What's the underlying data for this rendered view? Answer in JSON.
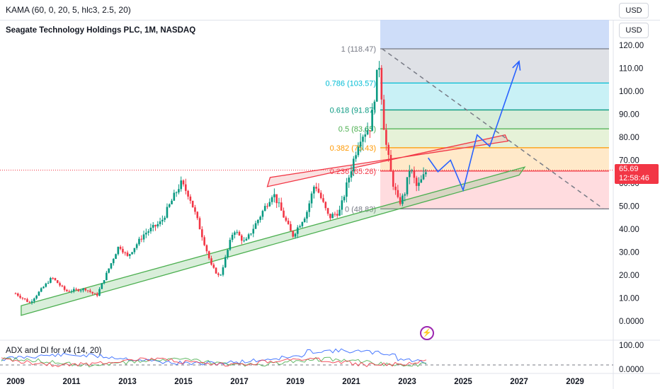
{
  "header": {
    "indicator_label": "KAMA (60, 0, 20, 5, hlc3, 2.5, 20)",
    "currency_top": "USD",
    "currency_main": "USD"
  },
  "chart_title": "Seagate Technology Holdings PLC, 1M, NASDAQ",
  "sub_indicator": {
    "label": "ADX and DI for v4 (14, 20)",
    "axis_labels": [
      "100.00",
      "0.0000"
    ]
  },
  "price_tag": {
    "price": "65.69",
    "countdown": "12:58:46"
  },
  "event_icon": "lightning-icon",
  "colors": {
    "up": "#089981",
    "down": "#f23645",
    "blue": "#2962ff",
    "channel_green": "#4caf50",
    "channel_red": "#f23645"
  },
  "chart_data": {
    "type": "candlestick",
    "title": "Seagate Technology Holdings PLC, 1M, NASDAQ",
    "x_ticks": [
      "2009",
      "2011",
      "2013",
      "2015",
      "2017",
      "2019",
      "2021",
      "2023",
      "2025",
      "2027",
      "2029"
    ],
    "y_ticks": [
      "120.00",
      "110.00",
      "100.00",
      "90.00",
      "80.00",
      "70.00",
      "60.00",
      "50.00",
      "40.00",
      "30.00",
      "20.00",
      "10.00",
      "0.0000"
    ],
    "ylim": [
      0,
      125
    ],
    "xlim": [
      2008.9,
      2030.1
    ],
    "fibonacci": [
      {
        "label": "1 (118.47)",
        "level": 1,
        "price": 118.47,
        "color": "#787b86"
      },
      {
        "label": "0.786 (103.57)",
        "level": 0.786,
        "price": 103.57,
        "color": "#00bcd4"
      },
      {
        "label": "0.618 (91.87)",
        "level": 0.618,
        "price": 91.87,
        "color": "#089981"
      },
      {
        "label": "0.5 (83.65)",
        "level": 0.5,
        "price": 83.65,
        "color": "#4caf50"
      },
      {
        "label": "0.382 (75.43)",
        "level": 0.382,
        "price": 75.43,
        "color": "#ff9800"
      },
      {
        "label": "0.236 (65.26)",
        "level": 0.236,
        "price": 65.26,
        "color": "#f23645"
      },
      {
        "label": "0 (48.83)",
        "level": 0,
        "price": 48.83,
        "color": "#787b86"
      }
    ],
    "price_path": [
      [
        2009.0,
        12
      ],
      [
        2009.5,
        8
      ],
      [
        2010.3,
        19
      ],
      [
        2010.8,
        13
      ],
      [
        2011.5,
        14
      ],
      [
        2011.9,
        11
      ],
      [
        2012.7,
        33
      ],
      [
        2013.0,
        28
      ],
      [
        2013.6,
        38
      ],
      [
        2014.2,
        43
      ],
      [
        2014.9,
        60
      ],
      [
        2015.2,
        55
      ],
      [
        2015.6,
        40
      ],
      [
        2016.0,
        24
      ],
      [
        2016.3,
        19
      ],
      [
        2016.8,
        40
      ],
      [
        2017.2,
        34
      ],
      [
        2017.8,
        47
      ],
      [
        2018.2,
        56
      ],
      [
        2018.9,
        37
      ],
      [
        2019.4,
        47
      ],
      [
        2019.7,
        60
      ],
      [
        2020.2,
        45
      ],
      [
        2020.6,
        48
      ],
      [
        2020.9,
        62
      ],
      [
        2021.3,
        80
      ],
      [
        2021.7,
        85
      ],
      [
        2021.9,
        105
      ],
      [
        2022.0,
        112
      ],
      [
        2022.2,
        80
      ],
      [
        2022.45,
        62
      ],
      [
        2022.7,
        51
      ],
      [
        2022.9,
        55
      ],
      [
        2023.1,
        67
      ],
      [
        2023.35,
        58
      ],
      [
        2023.55,
        62
      ],
      [
        2023.7,
        65.69
      ]
    ],
    "projection": [
      [
        2023.75,
        71
      ],
      [
        2024.1,
        65
      ],
      [
        2024.55,
        70
      ],
      [
        2025.0,
        57
      ],
      [
        2025.5,
        81
      ],
      [
        2025.95,
        76
      ],
      [
        2027.0,
        113
      ]
    ],
    "diagonal": [
      [
        2022.1,
        118.5
      ],
      [
        2030.0,
        49
      ]
    ],
    "green_channel": [
      [
        2009.2,
        2.5
      ],
      [
        2027.0,
        63.5
      ],
      [
        2027.2,
        67
      ],
      [
        2009.2,
        6.7
      ]
    ],
    "red_channel": [
      [
        2018.0,
        58.5
      ],
      [
        2026.5,
        81
      ],
      [
        2026.6,
        78.3
      ],
      [
        2018.1,
        62.5
      ]
    ],
    "adx": {
      "series": [
        "ADX",
        "DI+",
        "DI-"
      ],
      "colors": [
        "#2962ff",
        "#4caf50",
        "#f23645"
      ]
    }
  }
}
